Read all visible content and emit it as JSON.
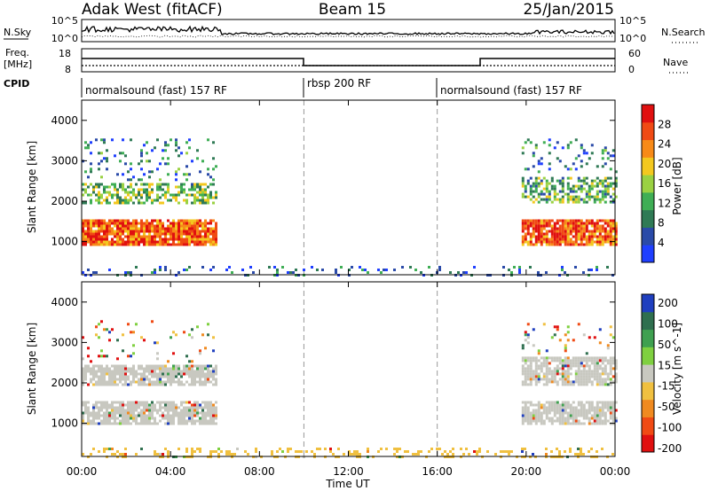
{
  "header": {
    "title": "Adak West (fitACF)",
    "beam": "Beam 15",
    "date": "25/Jan/2015"
  },
  "nsky_panel": {
    "left_label": "N.Sky",
    "left_ticks": [
      "10^5",
      "10^0"
    ],
    "right_label": "N.Search",
    "right_ticks": [
      "10^5",
      "10^0"
    ]
  },
  "freq_panel": {
    "left_label_1": "Freq.",
    "left_label_2": "[MHz]",
    "left_ticks": [
      "18",
      "8"
    ],
    "right_label": "Nave",
    "right_ticks": [
      "60",
      "0"
    ]
  },
  "cpid_panel": {
    "label": "CPID",
    "segments": [
      {
        "label": "normalsound (fast) 157 RF",
        "start_hour": 0,
        "end_hour": 10
      },
      {
        "label": "rbsp 200 RF",
        "start_hour": 10,
        "end_hour": 16
      },
      {
        "label": "normalsound (fast) 157 RF",
        "start_hour": 16,
        "end_hour": 24
      }
    ]
  },
  "chart_data": [
    {
      "type": "heatmap",
      "title": "",
      "ylabel": "Slant Range [km]",
      "xlabel": "",
      "ylim": [
        180,
        4500
      ],
      "yticks": [
        1000,
        2000,
        3000,
        4000
      ],
      "colorbar": {
        "label": "Power [dB]",
        "range": [
          0,
          32
        ],
        "ticks": [
          4,
          8,
          12,
          16,
          20,
          24,
          28
        ],
        "colors": [
          "#1f3fff",
          "#2a4aa8",
          "#2f7a55",
          "#3fae55",
          "#9ad142",
          "#f3c81f",
          "#f78a18",
          "#f04a14",
          "#e01010"
        ]
      },
      "regions": [
        {
          "name": "strong echo",
          "x": [
            0.0,
            6.0
          ],
          "y": [
            950,
            1550
          ],
          "value_db": 26
        },
        {
          "name": "upper band",
          "x": [
            0.0,
            6.0
          ],
          "y": [
            1950,
            2450
          ],
          "value_db": 14
        },
        {
          "name": "scatter",
          "x": [
            0.0,
            6.0
          ],
          "y": [
            2500,
            3550
          ],
          "value_db": 8
        },
        {
          "name": "strong echo",
          "x": [
            19.8,
            24.0
          ],
          "y": [
            950,
            1550
          ],
          "value_db": 26
        },
        {
          "name": "upper band",
          "x": [
            19.8,
            24.0
          ],
          "y": [
            1950,
            2600
          ],
          "value_db": 12
        },
        {
          "name": "scatter",
          "x": [
            19.8,
            24.0
          ],
          "y": [
            2700,
            3550
          ],
          "value_db": 8
        },
        {
          "name": "ground scatter",
          "x": [
            0.0,
            24.0
          ],
          "y": [
            180,
            400
          ],
          "value_db": 6
        }
      ]
    },
    {
      "type": "heatmap",
      "title": "",
      "ylabel": "Slant Range [km]",
      "xlabel": "Time UT",
      "ylim": [
        180,
        4500
      ],
      "yticks": [
        1000,
        2000,
        3000,
        4000
      ],
      "xticks": [
        "00:00",
        "04:00",
        "08:00",
        "12:00",
        "16:00",
        "20:00",
        "00:00"
      ],
      "xlim_hours": [
        0,
        24
      ],
      "colorbar": {
        "label": "Velocity [m s^-1]",
        "tick_labels": [
          "200",
          "100",
          "50",
          "15",
          "-15",
          "-50",
          "-100",
          "-200"
        ],
        "colors": [
          "#1f3fbf",
          "#2f6f4f",
          "#3fa050",
          "#7fd040",
          "#c8c8c0",
          "#f0c040",
          "#f08a20",
          "#f04a14",
          "#e01010"
        ]
      },
      "regions": [
        {
          "name": "ground scatter",
          "x": [
            0.0,
            6.0
          ],
          "y": [
            1000,
            1550
          ],
          "color": "#c8c8c0"
        },
        {
          "name": "ground scatter",
          "x": [
            0.0,
            6.0
          ],
          "y": [
            1950,
            2450
          ],
          "color": "#c8c8c0"
        },
        {
          "name": "ground scatter",
          "x": [
            19.8,
            24.0
          ],
          "y": [
            1000,
            1550
          ],
          "color": "#c8c8c0"
        },
        {
          "name": "ground scatter",
          "x": [
            19.8,
            24.0
          ],
          "y": [
            1950,
            2650
          ],
          "color": "#c8c8c0"
        },
        {
          "name": "near range",
          "x": [
            0.0,
            24.0
          ],
          "y": [
            180,
            400
          ],
          "color": "#f0c040"
        }
      ]
    }
  ]
}
